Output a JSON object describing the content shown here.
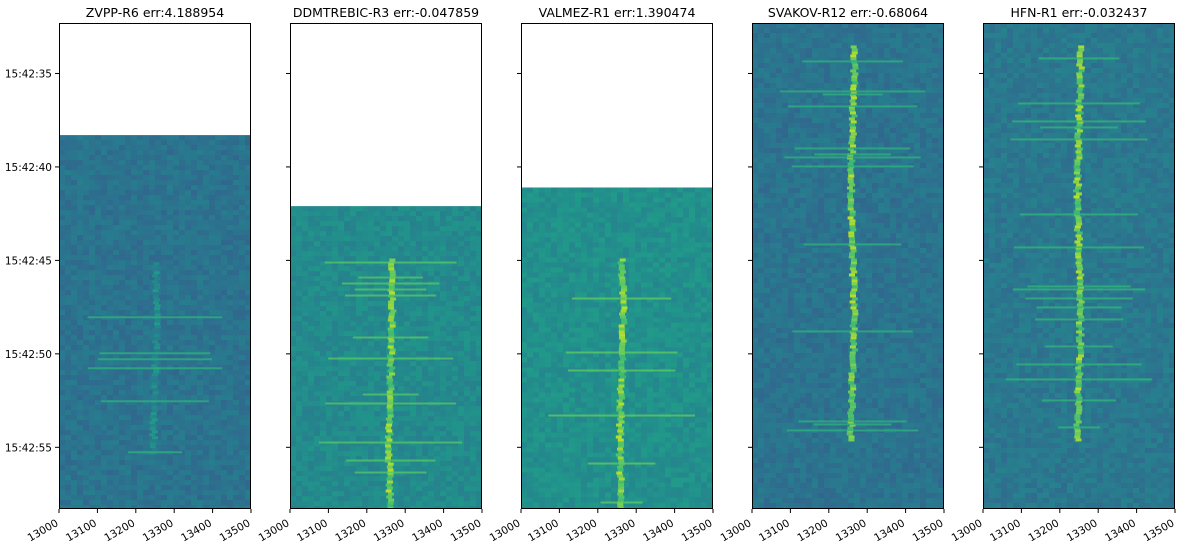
{
  "figure": {
    "panels": [
      {
        "title": "ZVPP-R6 err:4.188954"
      },
      {
        "title": "DDMTREBIC-R3 err:-0.047859"
      },
      {
        "title": "VALMEZ-R1 err:1.390474"
      },
      {
        "title": "SVAKOV-R12 err:-0.68064"
      },
      {
        "title": "HFN-R1 err:-0.032437"
      }
    ]
  },
  "chart_data": {
    "type": "heatmap",
    "description_note": "",
    "shared_y": true,
    "xlabel": "",
    "ylabel": "",
    "xlim": [
      13000,
      13500
    ],
    "ylim_seconds_since_15_42_00": [
      58.3,
      32.3
    ],
    "x_ticks": [
      13000,
      13100,
      13200,
      13300,
      13400,
      13500
    ],
    "x_tick_labels": [
      "13000",
      "13100",
      "13200",
      "13300",
      "13400",
      "13500"
    ],
    "y_ticks_seconds": [
      35,
      40,
      45,
      50,
      55
    ],
    "y_tick_labels": [
      "15:42:35",
      "15:42:40",
      "15:42:45",
      "15:42:50",
      "15:42:55"
    ],
    "colormap": "viridis",
    "panels": [
      {
        "title": "ZVPP-R6 err:4.188954",
        "data_start": 38.3,
        "signal_freq": 13250,
        "signal_start": 45.1,
        "signal_end": 55.3,
        "intensity": 0.55,
        "background": 0.38
      },
      {
        "title": "DDMTREBIC-R3 err:-0.047859",
        "data_start": 42.1,
        "signal_freq": 13262,
        "signal_start": 44.9,
        "signal_end": 58.3,
        "intensity": 0.9,
        "background": 0.48
      },
      {
        "title": "VALMEZ-R1 err:1.390474",
        "data_start": 41.1,
        "signal_freq": 13262,
        "signal_start": 44.9,
        "signal_end": 58.3,
        "intensity": 0.9,
        "background": 0.5
      },
      {
        "title": "SVAKOV-R12 err:-0.68064",
        "data_start": 32.3,
        "signal_freq": 13262,
        "signal_start": 33.5,
        "signal_end": 54.6,
        "intensity": 0.9,
        "background": 0.38
      },
      {
        "title": "HFN-R1 err:-0.032437",
        "data_start": 32.3,
        "signal_freq": 13250,
        "signal_start": 33.5,
        "signal_end": 54.6,
        "intensity": 0.9,
        "background": 0.4
      }
    ]
  }
}
